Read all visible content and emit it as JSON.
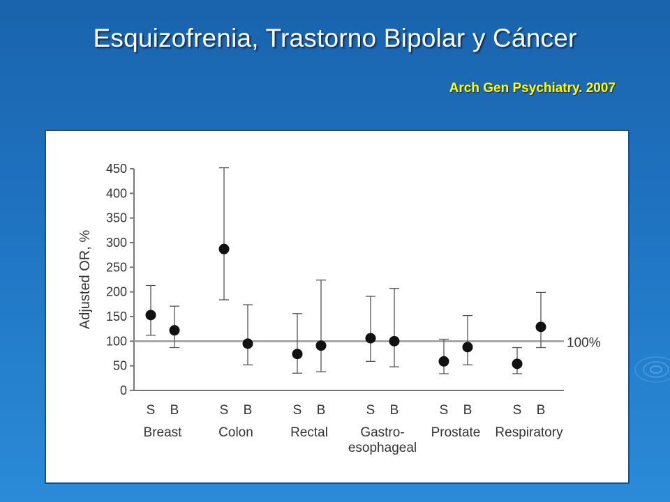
{
  "slide": {
    "title": "Esquizofrenia, Trastorno Bipolar  y Cáncer",
    "source": "Arch Gen Psychiatry. 2007"
  },
  "chart_data": {
    "type": "scatter",
    "ylabel": "Adjusted OR, %",
    "ylim": [
      0,
      450
    ],
    "yticks": [
      0,
      50,
      100,
      150,
      200,
      250,
      300,
      350,
      400,
      450
    ],
    "reference_line": {
      "value": 100,
      "label": "100%"
    },
    "groups": [
      {
        "name": "Breast",
        "points": [
          {
            "label": "S",
            "value": 153,
            "low": 112,
            "high": 213
          },
          {
            "label": "B",
            "value": 122,
            "low": 87,
            "high": 171
          }
        ]
      },
      {
        "name": "Colon",
        "points": [
          {
            "label": "S",
            "value": 287,
            "low": 184,
            "high": 452
          },
          {
            "label": "B",
            "value": 95,
            "low": 52,
            "high": 174
          }
        ]
      },
      {
        "name": "Rectal",
        "points": [
          {
            "label": "S",
            "value": 74,
            "low": 35,
            "high": 156
          },
          {
            "label": "B",
            "value": 91,
            "low": 38,
            "high": 224
          }
        ]
      },
      {
        "name": "Gastro-\nesophageal",
        "points": [
          {
            "label": "S",
            "value": 106,
            "low": 59,
            "high": 191
          },
          {
            "label": "B",
            "value": 100,
            "low": 48,
            "high": 207
          }
        ]
      },
      {
        "name": "Prostate",
        "points": [
          {
            "label": "S",
            "value": 59,
            "low": 34,
            "high": 104
          },
          {
            "label": "B",
            "value": 88,
            "low": 52,
            "high": 152
          }
        ]
      },
      {
        "name": "Respiratory",
        "points": [
          {
            "label": "S",
            "value": 54,
            "low": 34,
            "high": 87
          },
          {
            "label": "B",
            "value": 129,
            "low": 87,
            "high": 199
          }
        ]
      }
    ]
  }
}
